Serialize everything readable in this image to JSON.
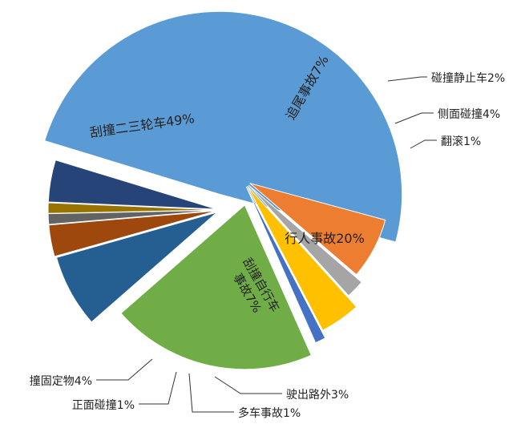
{
  "chart_data": {
    "type": "pie",
    "exploded": true,
    "title": "",
    "unit": "%",
    "slices": [
      {
        "label": "刮撞二三轮车",
        "value": 49,
        "display": "刮撞二三轮车49%",
        "color": "#5b9bd5"
      },
      {
        "label": "追尾事故",
        "value": 7,
        "display": "追尾事故7%",
        "color": "#ed7d31"
      },
      {
        "label": "碰撞静止车",
        "value": 2,
        "display": "碰撞静止车2%",
        "color": "#a5a5a5"
      },
      {
        "label": "侧面碰撞",
        "value": 4,
        "display": "侧面碰撞4%",
        "color": "#ffc000"
      },
      {
        "label": "翻滚",
        "value": 1,
        "display": "翻滚1%",
        "color": "#4472c4"
      },
      {
        "label": "行人事故",
        "value": 20,
        "display": "行人事故20%",
        "color": "#70ad47"
      },
      {
        "label": "刮撞自行车事故",
        "value": 7,
        "display": "刮撞自行车事故7%",
        "color": "#255e91"
      },
      {
        "label": "驶出路外",
        "value": 3,
        "display": "驶出路外3%",
        "color": "#9e480e"
      },
      {
        "label": "多车事故",
        "value": 1,
        "display": "多车事故1%",
        "color": "#636363"
      },
      {
        "label": "正面碰撞",
        "value": 1,
        "display": "正面碰撞1%",
        "color": "#997300"
      },
      {
        "label": "撞固定物",
        "value": 4,
        "display": "撞固定物4%",
        "color": "#264478"
      }
    ]
  }
}
